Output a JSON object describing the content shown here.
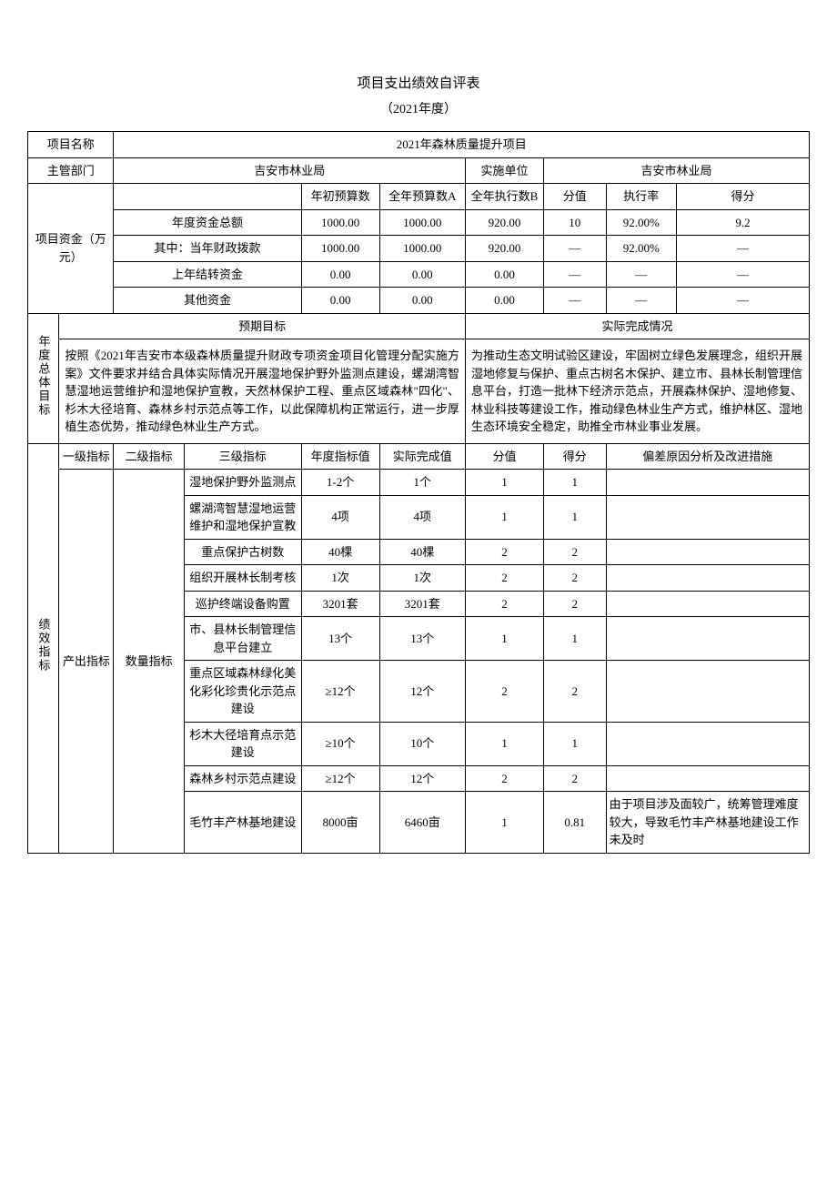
{
  "page": {
    "title": "项目支出绩效自评表",
    "subtitle": "（2021年度）"
  },
  "header": {
    "project_name_label": "项目名称",
    "project_name": "2021年森林质量提升项目",
    "dept_label": "主管部门",
    "dept": "吉安市林业局",
    "impl_unit_label": "实施单位",
    "impl_unit": "吉安市林业局"
  },
  "funds": {
    "section_label": "项目资金（万元）",
    "col_initial": "年初预算数",
    "col_full_a": "全年预算数A",
    "col_exec_b": "全年执行数B",
    "col_score": "分值",
    "col_rate": "执行率",
    "col_result": "得分",
    "rows": [
      {
        "label": "年度资金总额",
        "initial": "1000.00",
        "full": "1000.00",
        "exec": "920.00",
        "score": "10",
        "rate": "92.00%",
        "result": "9.2"
      },
      {
        "label": "其中：当年财政拨款",
        "initial": "1000.00",
        "full": "1000.00",
        "exec": "920.00",
        "score": "—",
        "rate": "92.00%",
        "result": "—"
      },
      {
        "label": "上年结转资金",
        "initial": "0.00",
        "full": "0.00",
        "exec": "0.00",
        "score": "—",
        "rate": "—",
        "result": "—"
      },
      {
        "label": "其他资金",
        "initial": "0.00",
        "full": "0.00",
        "exec": "0.00",
        "score": "—",
        "rate": "—",
        "result": "—"
      }
    ]
  },
  "goals": {
    "section_label": "年度总体目标",
    "expected_label": "预期目标",
    "actual_label": "实际完成情况",
    "expected_text": "按照《2021年吉安市本级森林质量提升财政专项资金项目化管理分配实施方案》文件要求并结合具体实际情况开展湿地保护野外监测点建设，螺湖湾智慧湿地运营维护和湿地保护宣教，天然林保护工程、重点区域森林\"四化\"、杉木大径培育、森林乡村示范点等工作，以此保障机构正常运行，进一步厚植生态优势，推动绿色林业生产方式。",
    "actual_text": "为推动生态文明试验区建设，牢固树立绿色发展理念，组织开展湿地修复与保护、重点古树名木保护、建立市、县林长制管理信息平台，打造一批林下经济示范点，开展森林保护、湿地修复、林业科技等建设工作，推动绿色林业生产方式，维护林区、湿地生态环境安全稳定，助推全市林业事业发展。"
  },
  "indicators": {
    "section_label": "绩效指标",
    "col_l1": "一级指标",
    "col_l2": "二级指标",
    "col_l3": "三级指标",
    "col_target": "年度指标值",
    "col_actual": "实际完成值",
    "col_score": "分值",
    "col_result": "得分",
    "col_reason": "偏差原因分析及改进措施",
    "l1_output": "产出指标",
    "l2_qty": "数量指标",
    "rows": [
      {
        "l3": "湿地保护野外监测点",
        "target": "1-2个",
        "actual": "1个",
        "score": "1",
        "result": "1",
        "reason": ""
      },
      {
        "l3": "螺湖湾智慧湿地运营维护和湿地保护宣教",
        "target": "4项",
        "actual": "4项",
        "score": "1",
        "result": "1",
        "reason": ""
      },
      {
        "l3": "重点保护古树数",
        "target": "40棵",
        "actual": "40棵",
        "score": "2",
        "result": "2",
        "reason": ""
      },
      {
        "l3": "组织开展林长制考核",
        "target": "1次",
        "actual": "1次",
        "score": "2",
        "result": "2",
        "reason": ""
      },
      {
        "l3": "巡护终端设备购置",
        "target": "3201套",
        "actual": "3201套",
        "score": "2",
        "result": "2",
        "reason": ""
      },
      {
        "l3": "市、县林长制管理信息平台建立",
        "target": "13个",
        "actual": "13个",
        "score": "1",
        "result": "1",
        "reason": ""
      },
      {
        "l3": "重点区域森林绿化美化彩化珍贵化示范点建设",
        "target": "≥12个",
        "actual": "12个",
        "score": "2",
        "result": "2",
        "reason": ""
      },
      {
        "l3": "杉木大径培育点示范建设",
        "target": "≥10个",
        "actual": "10个",
        "score": "1",
        "result": "1",
        "reason": ""
      },
      {
        "l3": "森林乡村示范点建设",
        "target": "≥12个",
        "actual": "12个",
        "score": "2",
        "result": "2",
        "reason": ""
      },
      {
        "l3": "毛竹丰产林基地建设",
        "target": "8000亩",
        "actual": "6460亩",
        "score": "1",
        "result": "0.81",
        "reason": "由于项目涉及面较广，统筹管理难度较大，导致毛竹丰产林基地建设工作未及时"
      }
    ]
  }
}
